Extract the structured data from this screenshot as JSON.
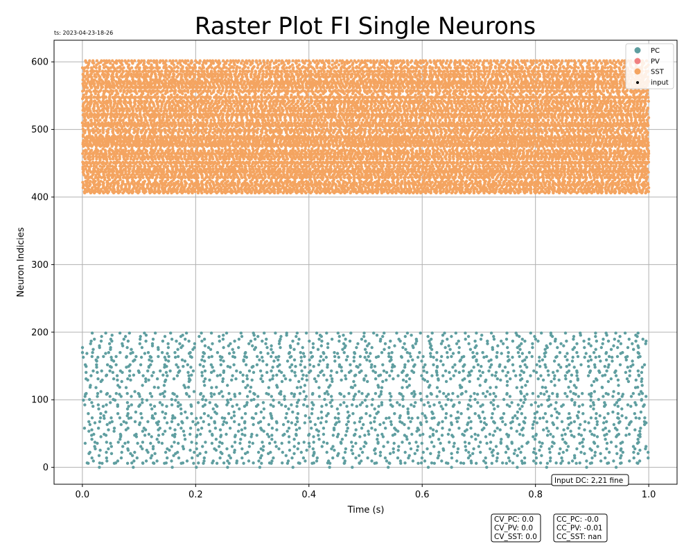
{
  "chart_data": {
    "type": "scatter",
    "title": "Raster Plot FI Single Neurons",
    "timestamp": "ts: 2023-04-23-18-26",
    "xlabel": "Time (s)",
    "ylabel": "Neuron Indicies",
    "xlim": [
      -0.05,
      1.05
    ],
    "ylim": [
      -25,
      632
    ],
    "xticks": [
      0.0,
      0.2,
      0.4,
      0.6,
      0.8,
      1.0
    ],
    "xtick_labels": [
      "0.0",
      "0.2",
      "0.4",
      "0.6",
      "0.8",
      "1.0"
    ],
    "yticks": [
      0,
      100,
      200,
      300,
      400,
      500,
      600
    ],
    "ytick_labels": [
      "0",
      "100",
      "200",
      "300",
      "400",
      "500",
      "600"
    ],
    "grid": true,
    "legend_position": "top-right",
    "series": [
      {
        "name": "PC",
        "color": "#5f9ea0",
        "neuron_range": [
          0,
          200
        ],
        "t_range": [
          0.0,
          1.0
        ],
        "approx_spikes": 2300
      },
      {
        "name": "PV",
        "color": "#f08080",
        "neuron_range": [],
        "t_range": [],
        "approx_spikes": 0
      },
      {
        "name": "SST",
        "color": "#f4a460",
        "neuron_range": [
          405,
          602
        ],
        "t_range": [
          0.0,
          1.0
        ],
        "approx_spikes": 13000
      },
      {
        "name": "input",
        "color": "#000000",
        "neuron_range": [],
        "t_range": [],
        "approx_spikes": 0
      }
    ],
    "annotations": {
      "input_dc": "Input DC: 2,21 fine",
      "cv_lines": [
        "CV_PC: 0.0",
        "CV_PV: 0.0",
        "CV_SST: 0.0"
      ],
      "cc_lines": [
        "CC_PC: -0.0",
        "CC_PV: -0.01",
        "CC_SST: nan"
      ]
    }
  }
}
